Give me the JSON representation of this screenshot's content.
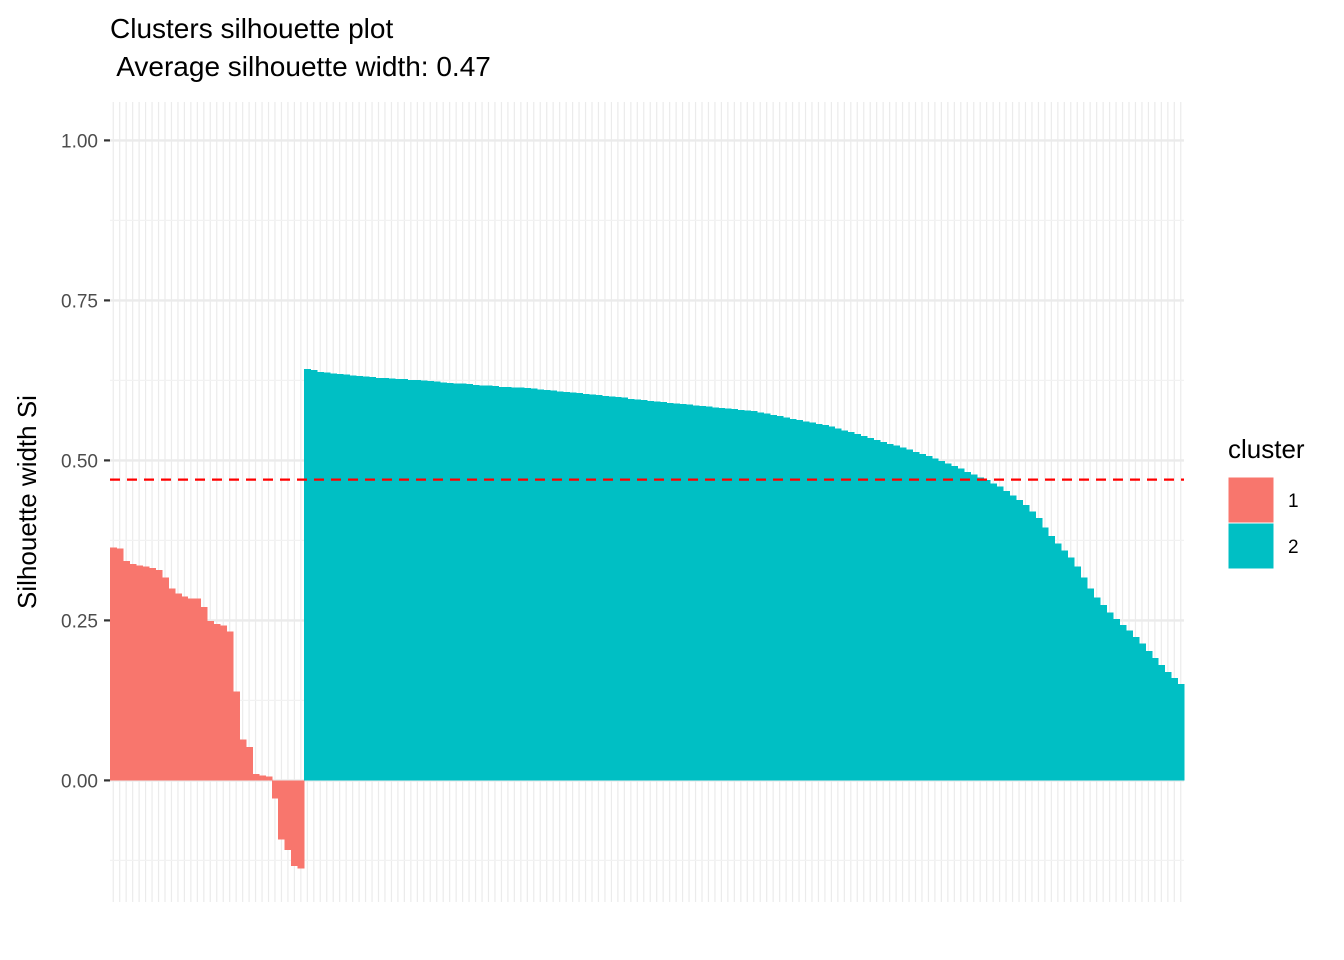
{
  "chart_data": {
    "type": "bar",
    "title": "Clusters silhouette plot",
    "subtitle": " Average silhouette width: 0.47",
    "xlabel": "",
    "ylabel": "Silhouette width Si",
    "ylim": [
      -0.19,
      1.06
    ],
    "yticks": [
      {
        "value": 0.0,
        "label": "0.00"
      },
      {
        "value": 0.25,
        "label": "0.25"
      },
      {
        "value": 0.5,
        "label": "0.50"
      },
      {
        "value": 0.75,
        "label": "0.75"
      },
      {
        "value": 1.0,
        "label": "1.00"
      }
    ],
    "average_line": {
      "value": 0.47,
      "color": "#FF0000",
      "style": "dashed"
    },
    "grid": true,
    "legend": {
      "title": "cluster",
      "position": "right",
      "entries": [
        {
          "label": "1",
          "color": "#F8766D"
        },
        {
          "label": "2",
          "color": "#00BFC4"
        }
      ]
    },
    "series": [
      {
        "cluster": "1",
        "color": "#F8766D",
        "values": [
          0.364,
          0.362,
          0.343,
          0.338,
          0.336,
          0.334,
          0.332,
          0.329,
          0.317,
          0.3,
          0.292,
          0.287,
          0.284,
          0.284,
          0.271,
          0.249,
          0.244,
          0.242,
          0.233,
          0.139,
          0.064,
          0.052,
          0.01,
          0.008,
          0.006,
          -0.028,
          -0.092,
          -0.109,
          -0.134,
          -0.138
        ]
      },
      {
        "cluster": "2",
        "color": "#00BFC4",
        "values": [
          0.643,
          0.641,
          0.638,
          0.637,
          0.636,
          0.635,
          0.634,
          0.633,
          0.632,
          0.631,
          0.63,
          0.629,
          0.629,
          0.628,
          0.627,
          0.627,
          0.626,
          0.626,
          0.625,
          0.624,
          0.623,
          0.622,
          0.621,
          0.62,
          0.62,
          0.619,
          0.618,
          0.617,
          0.617,
          0.616,
          0.615,
          0.615,
          0.614,
          0.614,
          0.613,
          0.612,
          0.611,
          0.61,
          0.609,
          0.608,
          0.607,
          0.606,
          0.605,
          0.604,
          0.603,
          0.602,
          0.601,
          0.6,
          0.599,
          0.598,
          0.596,
          0.595,
          0.594,
          0.593,
          0.592,
          0.591,
          0.59,
          0.589,
          0.588,
          0.587,
          0.586,
          0.585,
          0.584,
          0.583,
          0.582,
          0.581,
          0.58,
          0.579,
          0.578,
          0.577,
          0.575,
          0.573,
          0.571,
          0.569,
          0.567,
          0.565,
          0.563,
          0.561,
          0.559,
          0.557,
          0.555,
          0.553,
          0.55,
          0.547,
          0.544,
          0.541,
          0.538,
          0.535,
          0.532,
          0.529,
          0.526,
          0.523,
          0.52,
          0.517,
          0.513,
          0.51,
          0.507,
          0.503,
          0.499,
          0.495,
          0.491,
          0.487,
          0.482,
          0.478,
          0.473,
          0.469,
          0.464,
          0.459,
          0.452,
          0.445,
          0.438,
          0.43,
          0.42,
          0.41,
          0.395,
          0.382,
          0.37,
          0.359,
          0.348,
          0.334,
          0.317,
          0.3,
          0.286,
          0.274,
          0.262,
          0.252,
          0.243,
          0.234,
          0.224,
          0.214,
          0.202,
          0.191,
          0.18,
          0.169,
          0.16,
          0.151
        ]
      }
    ]
  }
}
